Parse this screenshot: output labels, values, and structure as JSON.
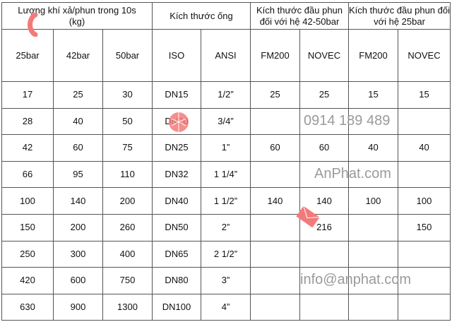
{
  "header": {
    "group1": "Lượng khí xả/phun trong 10s (kg)",
    "group2": "Kích thước ống",
    "group3": "Kích thước đầu phun đối với hệ 42-50bar",
    "group4": "Kích thước đầu phun đối với hệ 25bar",
    "columns": [
      "25bar",
      "42bar",
      "50bar",
      "ISO",
      "ANSI",
      "FM200",
      "NOVEC",
      "FM200",
      "NOVEC"
    ]
  },
  "rows": [
    [
      "17",
      "25",
      "30",
      "DN15",
      "1/2”",
      "25",
      "25",
      "15",
      "15"
    ],
    [
      "28",
      "40",
      "50",
      "DN20",
      "3/4”",
      "",
      "",
      "",
      ""
    ],
    [
      "42",
      "60",
      "75",
      "DN25",
      "1”",
      "60",
      "60",
      "40",
      "40"
    ],
    [
      "66",
      "95",
      "110",
      "DN32",
      "1 1/4”",
      "",
      "",
      "",
      ""
    ],
    [
      "100",
      "140",
      "200",
      "DN40",
      "1 1/2”",
      "140",
      "140",
      "100",
      "100"
    ],
    [
      "150",
      "200",
      "260",
      "DN50",
      "2”",
      "",
      "216",
      "",
      "150"
    ],
    [
      "250",
      "300",
      "400",
      "DN65",
      "2 1/2”",
      "",
      "",
      "",
      ""
    ],
    [
      "420",
      "600",
      "750",
      "DN80",
      "3”",
      "",
      "",
      "",
      ""
    ],
    [
      "630",
      "900",
      "1300",
      "DN100",
      "4”",
      "",
      "",
      "",
      ""
    ]
  ],
  "watermark": {
    "phone": "0914 189 489",
    "site": "AnPhat.com",
    "email": "info@anphat.com",
    "accent": "#f47a7a"
  }
}
